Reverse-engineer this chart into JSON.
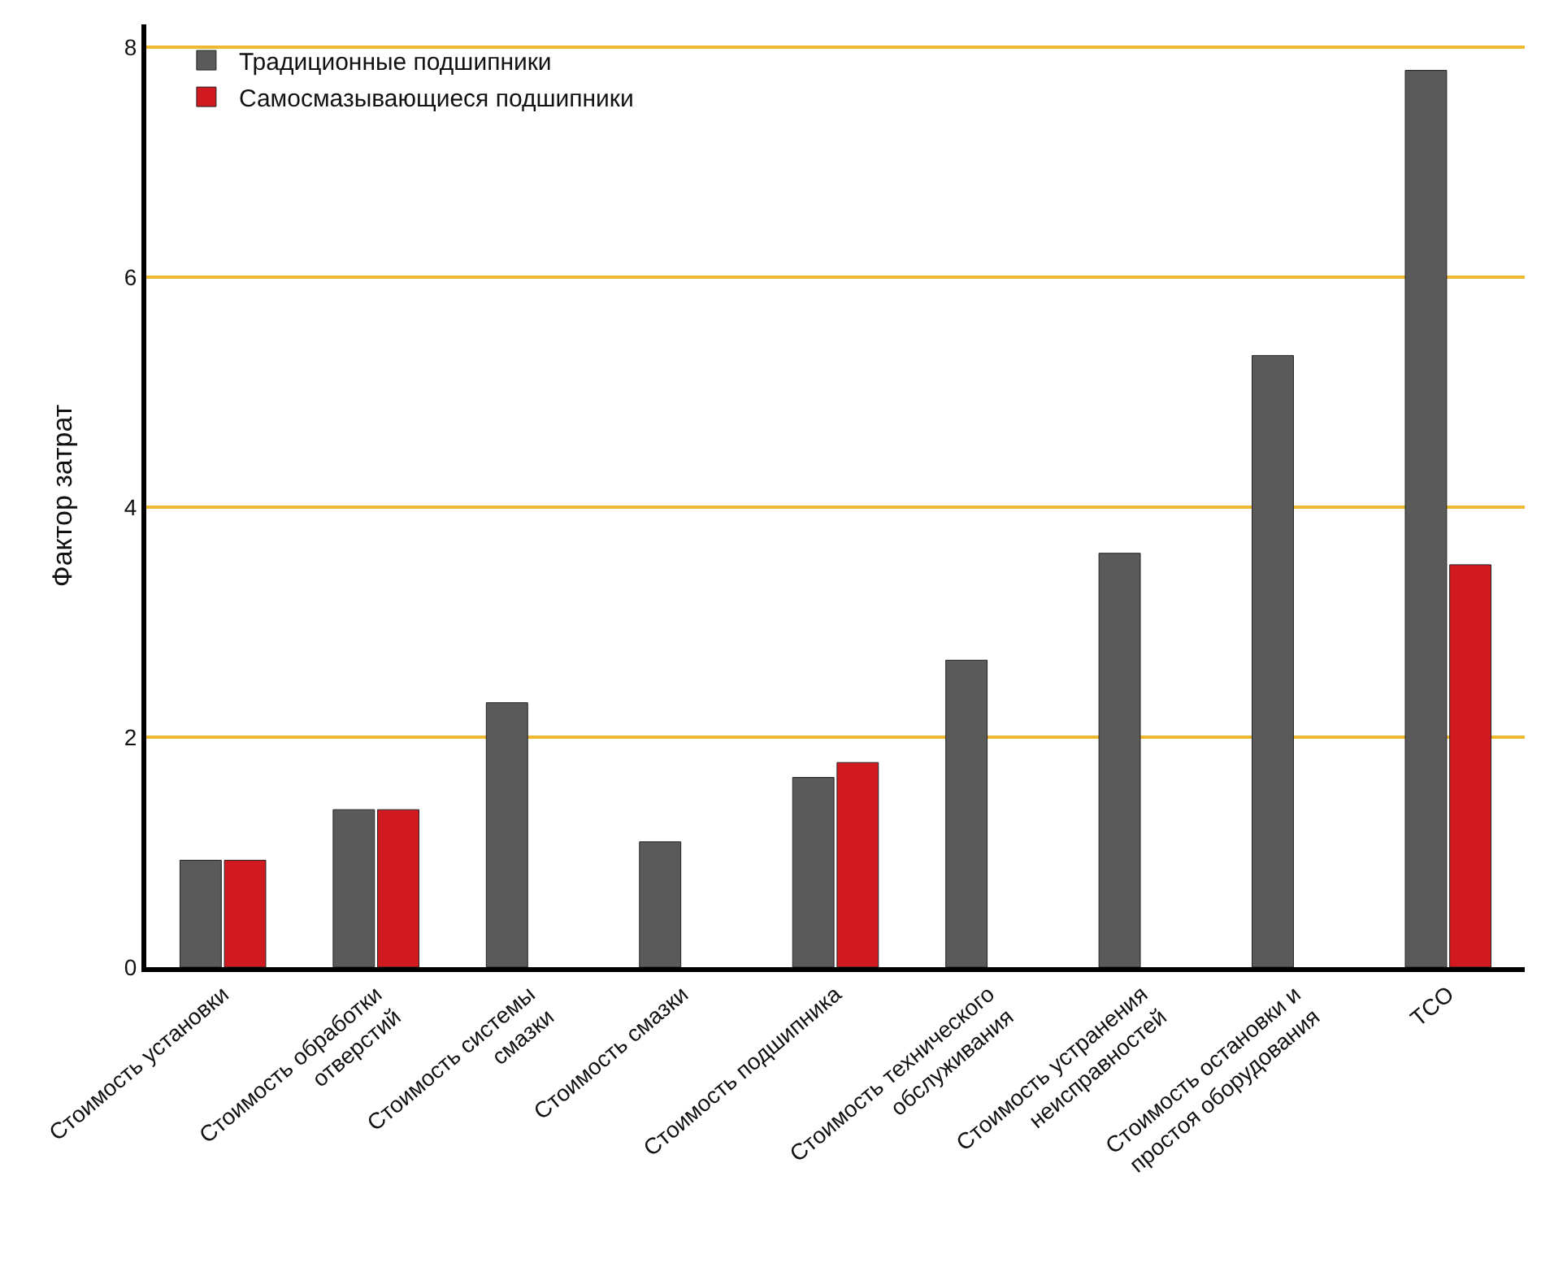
{
  "chart_data": {
    "type": "bar",
    "ylabel": "Фактор затрат",
    "categories": [
      "Стоимость установки",
      "Стоимость обработки\nотверстий",
      "Стоимость системы\nсмазки",
      "Стоимость смазки",
      "Стоимость подшипника",
      "Стоимость технического\nобслуживания",
      "Стоимость устранения\nнеисправностей",
      "Стоимость остановки и\nпростоя оборудования",
      "TCO"
    ],
    "series": [
      {
        "name": "Традиционные подшипники",
        "color": "#5a5a5a",
        "values": [
          0.93,
          1.37,
          2.3,
          1.09,
          1.65,
          2.67,
          3.6,
          5.32,
          7.8
        ]
      },
      {
        "name": "Самосмазывающиеся подшипники",
        "color": "#d01a20",
        "values": [
          0.93,
          1.37,
          null,
          null,
          1.78,
          null,
          null,
          null,
          3.5
        ]
      }
    ],
    "ylim": [
      0,
      8.2
    ],
    "yticks": [
      0,
      2,
      4,
      6,
      8
    ],
    "grid": "y",
    "legend": "top left"
  }
}
